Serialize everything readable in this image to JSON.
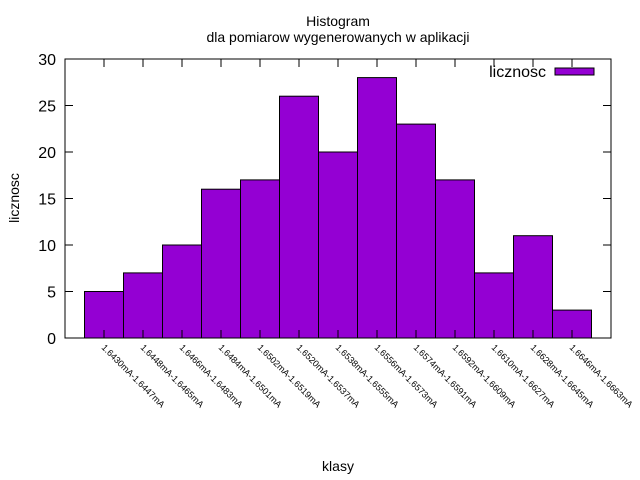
{
  "chart_data": {
    "type": "bar",
    "title": "Histogram",
    "subtitle": "dla pomiarow wygenerowanych w aplikacji",
    "xlabel": "klasy",
    "ylabel": "licznosc",
    "ylim": [
      0,
      30
    ],
    "yticks": [
      0,
      5,
      10,
      15,
      20,
      25,
      30
    ],
    "grid": false,
    "legend_position": "top-right",
    "bar_color": "#9400d3",
    "categories": [
      "1.6430mA-1.6447mA",
      "1.6448mA-1.6465mA",
      "1.6466mA-1.6483mA",
      "1.6484mA-1.6501mA",
      "1.6502mA-1.6519mA",
      "1.6520mA-1.6537mA",
      "1.6538mA-1.6555mA",
      "1.6556mA-1.6573mA",
      "1.6574mA-1.6591mA",
      "1.6592mA-1.6609mA",
      "1.6610mA-1.6627mA",
      "1.6628mA-1.6645mA",
      "1.6646mA-1.6663mA"
    ],
    "series": [
      {
        "name": "licznosc",
        "values": [
          5,
          7,
          10,
          16,
          17,
          26,
          20,
          28,
          23,
          17,
          7,
          11,
          3
        ]
      }
    ]
  }
}
